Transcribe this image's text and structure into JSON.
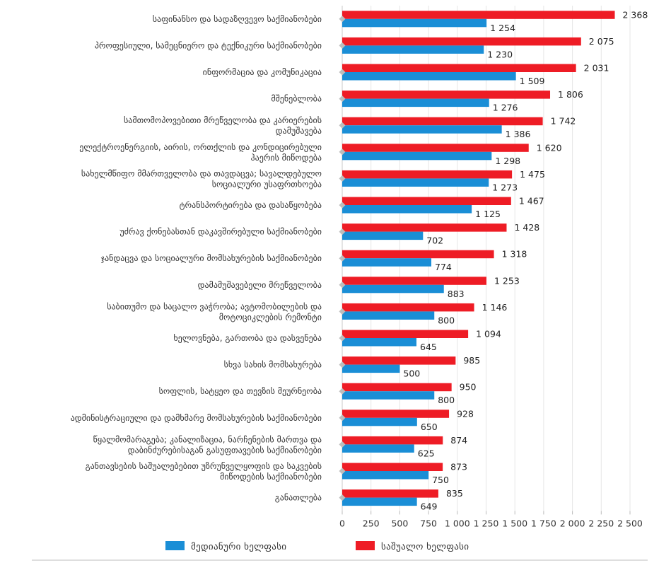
{
  "chart_data": {
    "type": "bar",
    "orientation": "horizontal",
    "categories": [
      [
        "საფინანსო და სადაზღვევო საქმიანობები"
      ],
      [
        "პროფესიული, სამეცნიერო და ტექნიკური საქმიანობები"
      ],
      [
        "ინფორმაცია და კომუნიკაცია"
      ],
      [
        "მშენებლობა"
      ],
      [
        "სამთომოპოვებითი მრეწველობა და კარიერების",
        "დამუშავება"
      ],
      [
        "ელექტროენერგიის, აირის, ორთქლის და კონდიცირებული",
        "ჰაერის მიწოდება"
      ],
      [
        "სახელმწიფო მმართველობა და თავდაცვა; სავალდებულო",
        "სოციალური უსაფრთხოება"
      ],
      [
        "ტრანსპორტირება და დასაწყობება"
      ],
      [
        "უძრავ ქონებასთან დაკავშირებული საქმიანობები"
      ],
      [
        "ჯანდაცვა და სოციალური მომსახურების საქმიანობები"
      ],
      [
        "დამამუშავებელი მრეწველობა"
      ],
      [
        "საბითუმო და საცალო ვაჭრობა; ავტომობილების და",
        "მოტოციკლების რემონტი"
      ],
      [
        "ხელოვნება, გართობა და დასვენება"
      ],
      [
        "სხვა სახის მომსახურება"
      ],
      [
        "სოფლის, სატყეო და თევზის მეურნეობა"
      ],
      [
        "ადმინისტრაციული და დამხმარე მომსახურების საქმიანობები"
      ],
      [
        "წყალმომარაგება; კანალიზაცია, ნარჩენების მართვა და",
        "დაბინძურებისაგან გასუფთავების საქმიანობები"
      ],
      [
        "განთავსების საშუალებებით უზრუნველყოფის და საკვების",
        "მიწოდების საქმიანობები"
      ],
      [
        "განათლება"
      ]
    ],
    "series": [
      {
        "name": "საშუალო ხელფასი",
        "color": "#ee1c25",
        "values": [
          2368,
          2075,
          2031,
          1806,
          1742,
          1620,
          1475,
          1467,
          1428,
          1318,
          1253,
          1146,
          1094,
          985,
          950,
          928,
          874,
          873,
          835
        ],
        "labels": [
          "2 368",
          "2 075",
          "2 031",
          "1 806",
          "1 742",
          "1 620",
          "1 475",
          "1 467",
          "1 428",
          "1 318",
          "1 253",
          "1 146",
          "1 094",
          "985",
          "950",
          "928",
          "874",
          "873",
          "835"
        ]
      },
      {
        "name": "მედიანური ხელფასი",
        "color": "#1a8ed6",
        "values": [
          1254,
          1230,
          1509,
          1276,
          1386,
          1298,
          1273,
          1125,
          702,
          774,
          883,
          800,
          645,
          500,
          800,
          650,
          625,
          750,
          649
        ],
        "labels": [
          "1 254",
          "1 230",
          "1 509",
          "1 276",
          "1 386",
          "1 298",
          "1 273",
          "1 125",
          "702",
          "774",
          "883",
          "800",
          "645",
          "500",
          "800",
          "650",
          "625",
          "750",
          "649"
        ]
      }
    ],
    "xlim": [
      0,
      2500
    ],
    "x_ticks": [
      "0",
      "250",
      "500",
      "750",
      "1 000",
      "1 250",
      "1 500",
      "1 750",
      "2 000",
      "2 250",
      "2 500"
    ],
    "grid": "vertical",
    "legend": {
      "position": "bottom",
      "order": [
        "მედიანური ხელფასი",
        "საშუალო ხელფასი"
      ]
    }
  }
}
